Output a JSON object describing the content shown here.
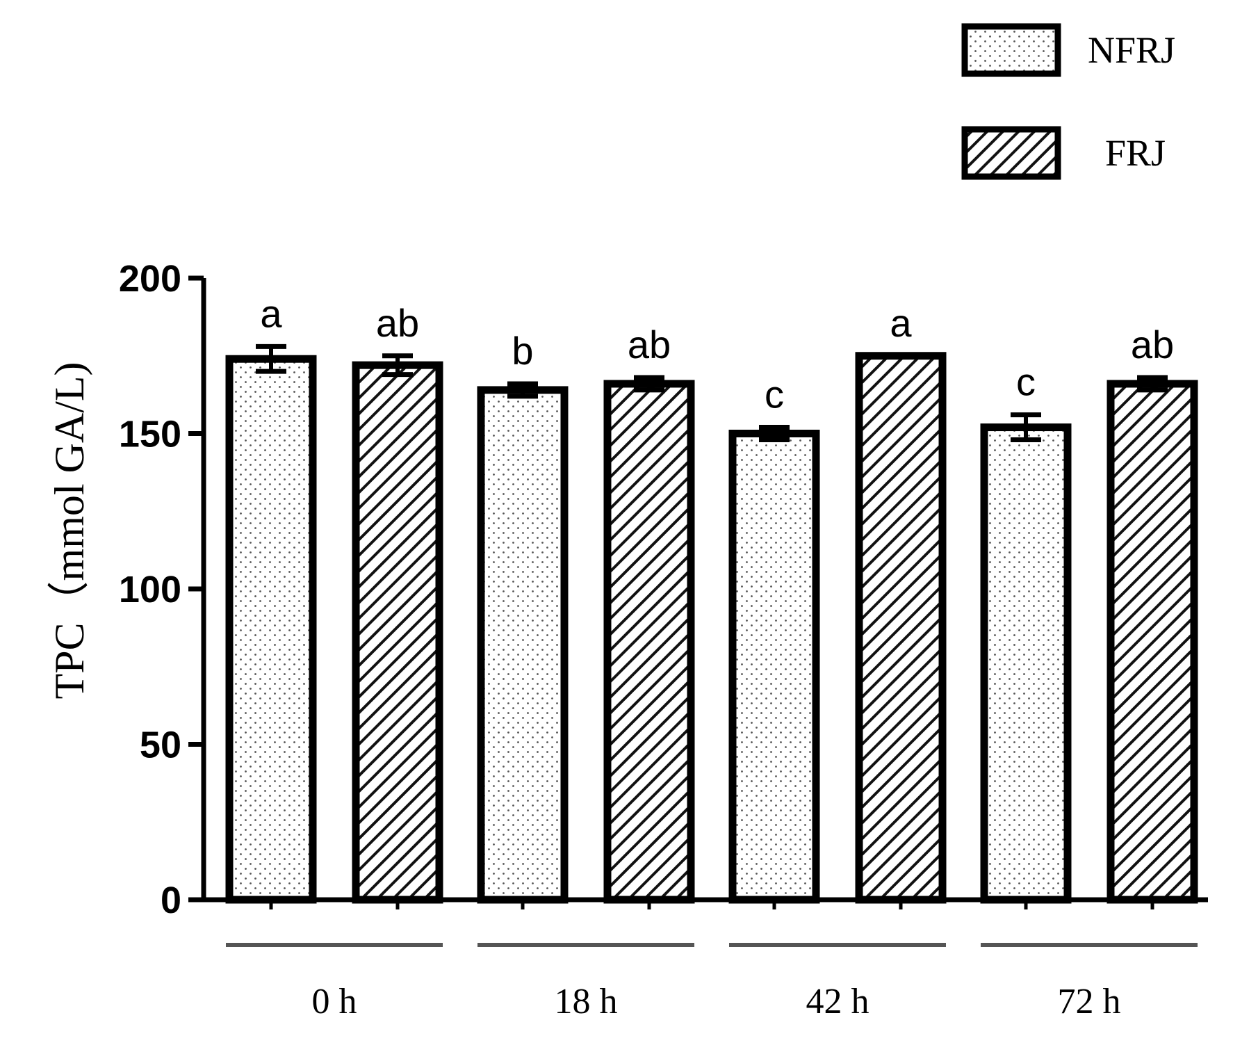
{
  "chart_data": {
    "type": "bar",
    "ylabel": "TPC（mmol GA/L)",
    "xlabel": "",
    "ylim": [
      0,
      200
    ],
    "yticks": [
      0,
      50,
      100,
      150,
      200
    ],
    "grid": false,
    "legend_position": "top-right",
    "categories": [
      "0 h",
      "18 h",
      "42 h",
      "72 h"
    ],
    "series": [
      {
        "name": "NFRJ",
        "pattern": "dots",
        "values": [
          174,
          164,
          150,
          152
        ],
        "errors": [
          4,
          2,
          2,
          4
        ],
        "labels": [
          "a",
          "b",
          "c",
          "c"
        ]
      },
      {
        "name": "FRJ",
        "pattern": "diagonal-hatch",
        "values": [
          172,
          166,
          175,
          166
        ],
        "errors": [
          3,
          2,
          0,
          2
        ],
        "labels": [
          "ab",
          "ab",
          "a",
          "ab"
        ]
      }
    ]
  }
}
